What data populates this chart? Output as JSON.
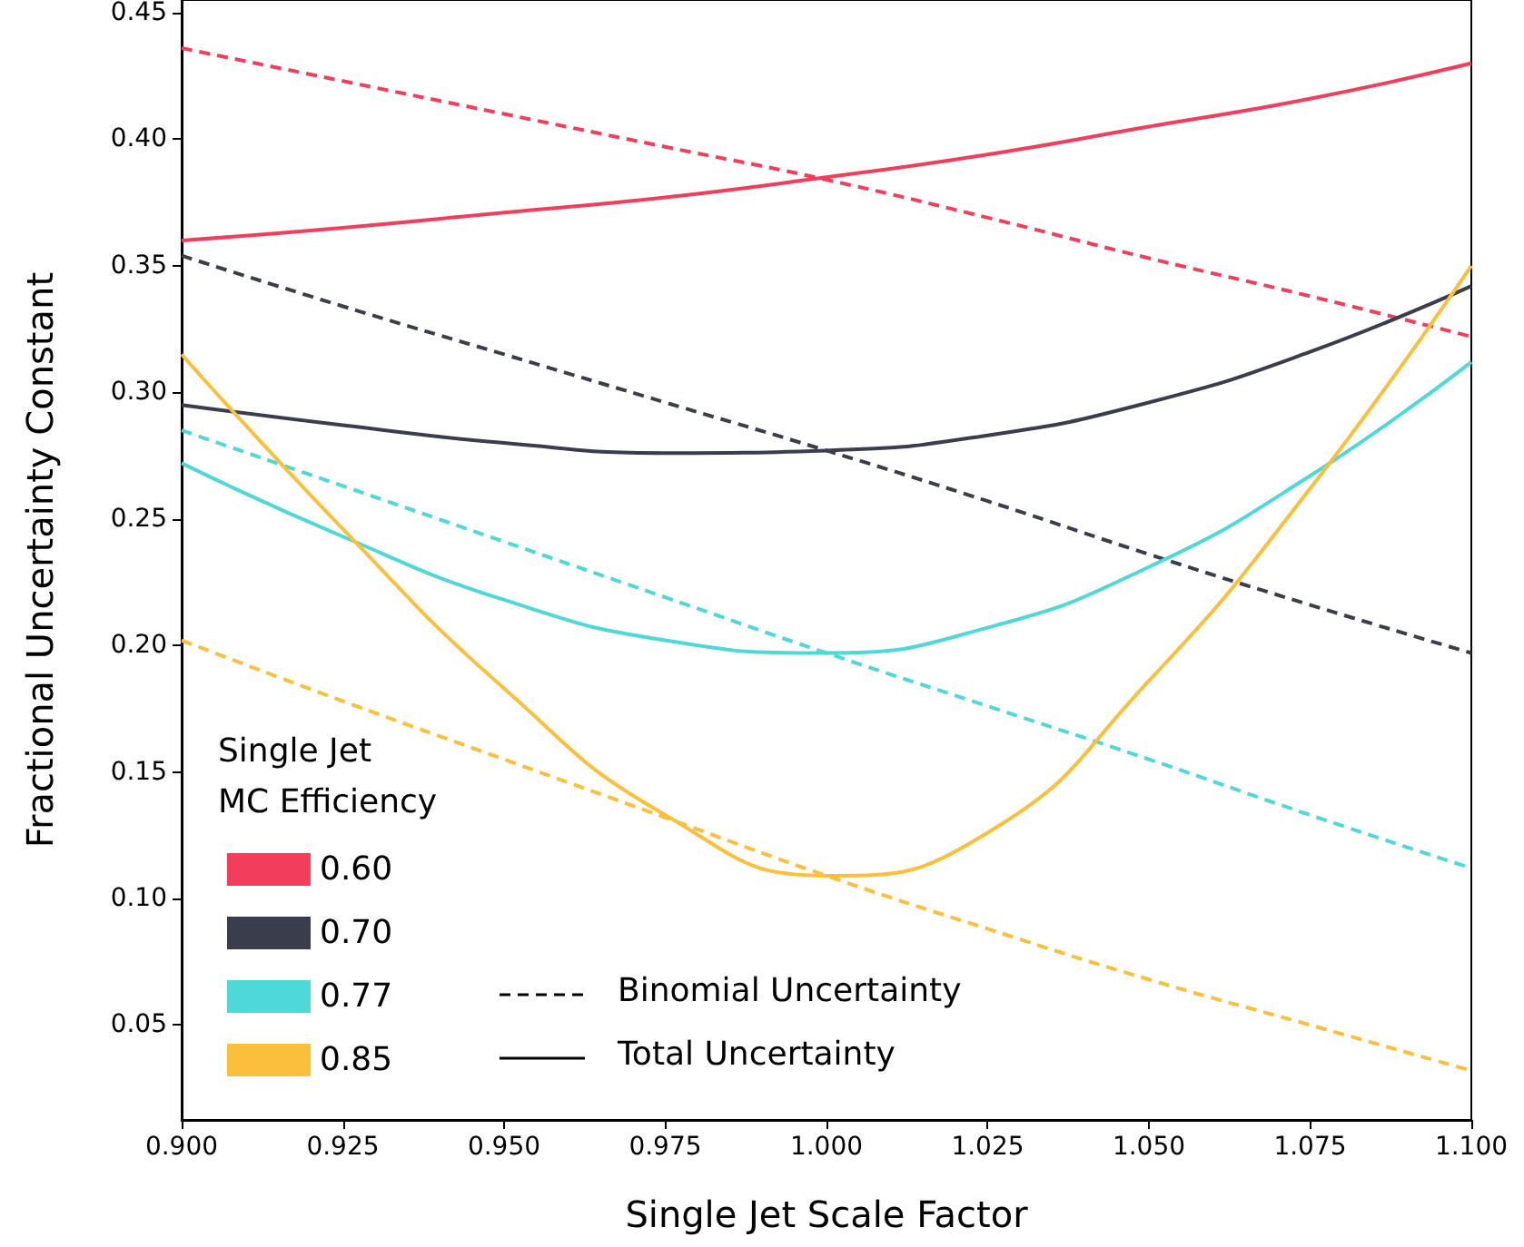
{
  "chart_data": {
    "type": "line",
    "xlabel": "Single Jet Scale Factor",
    "ylabel": "Fractional Uncertainty Constant",
    "legend_title": "Single Jet\nMC Efficiency",
    "legend": "bottom left",
    "grid": false,
    "marker": "none",
    "x": [
      0.9,
      0.925,
      0.95,
      0.975,
      1.0,
      1.025,
      1.05,
      1.075,
      1.1
    ],
    "xlim": [
      0.9,
      1.1
    ],
    "xticks": [
      {
        "value": 0.9,
        "label": "0.900"
      },
      {
        "value": 0.925,
        "label": "0.925"
      },
      {
        "value": 0.95,
        "label": "0.950"
      },
      {
        "value": 0.975,
        "label": "0.975"
      },
      {
        "value": 1.0,
        "label": "1.000"
      },
      {
        "value": 1.025,
        "label": "1.025"
      },
      {
        "value": 1.05,
        "label": "1.050"
      },
      {
        "value": 1.075,
        "label": "1.075"
      },
      {
        "value": 1.1,
        "label": "1.100"
      }
    ],
    "ylim": [
      0.0125,
      0.455
    ],
    "yticks": [
      {
        "value": 0.05,
        "label": "0.05"
      },
      {
        "value": 0.1,
        "label": "0.10"
      },
      {
        "value": 0.15,
        "label": "0.15"
      },
      {
        "value": 0.2,
        "label": "0.20"
      },
      {
        "value": 0.25,
        "label": "0.25"
      },
      {
        "value": 0.3,
        "label": "0.30"
      },
      {
        "value": 0.35,
        "label": "0.35"
      },
      {
        "value": 0.4,
        "label": "0.40"
      },
      {
        "value": 0.45,
        "label": "0.45"
      }
    ],
    "annotations": [
      "Binomial Uncertainty",
      "Total Uncertainty"
    ],
    "series": [
      {
        "color": "#f23d5c",
        "line_style": "dashed",
        "values": [
          0.436,
          0.423,
          0.41,
          0.397,
          0.384,
          0.369,
          0.353,
          0.338,
          0.322
        ]
      },
      {
        "color": "#3a3e4c",
        "line_style": "dashed",
        "values": [
          0.354,
          0.334,
          0.315,
          0.296,
          0.277,
          0.257,
          0.236,
          0.216,
          0.197
        ]
      },
      {
        "color": "#4fd8d8",
        "line_style": "dashed",
        "values": [
          0.285,
          0.263,
          0.241,
          0.219,
          0.197,
          0.176,
          0.155,
          0.133,
          0.112
        ]
      },
      {
        "color": "#fbbf3c",
        "line_style": "dashed",
        "values": [
          0.202,
          0.178,
          0.155,
          0.132,
          0.109,
          0.088,
          0.068,
          0.05,
          0.032
        ]
      },
      {
        "name": "0.60",
        "color": "#f23d5c",
        "line_style": "solid",
        "values": [
          0.36,
          0.365,
          0.371,
          0.377,
          0.385,
          0.394,
          0.405,
          0.416,
          0.43
        ]
      },
      {
        "name": "0.70",
        "color": "#3a3e4c",
        "line_style": "solid",
        "values": [
          0.295,
          0.287,
          0.28,
          0.276,
          0.277,
          0.283,
          0.296,
          0.316,
          0.342
        ]
      },
      {
        "name": "0.77",
        "color": "#4fd8d8",
        "line_style": "solid",
        "values": [
          0.272,
          0.243,
          0.218,
          0.202,
          0.197,
          0.207,
          0.231,
          0.267,
          0.312
        ]
      },
      {
        "name": "0.85",
        "color": "#fbbf3c",
        "line_style": "solid",
        "values": [
          0.315,
          0.246,
          0.183,
          0.133,
          0.109,
          0.126,
          0.186,
          0.262,
          0.35
        ]
      }
    ]
  }
}
